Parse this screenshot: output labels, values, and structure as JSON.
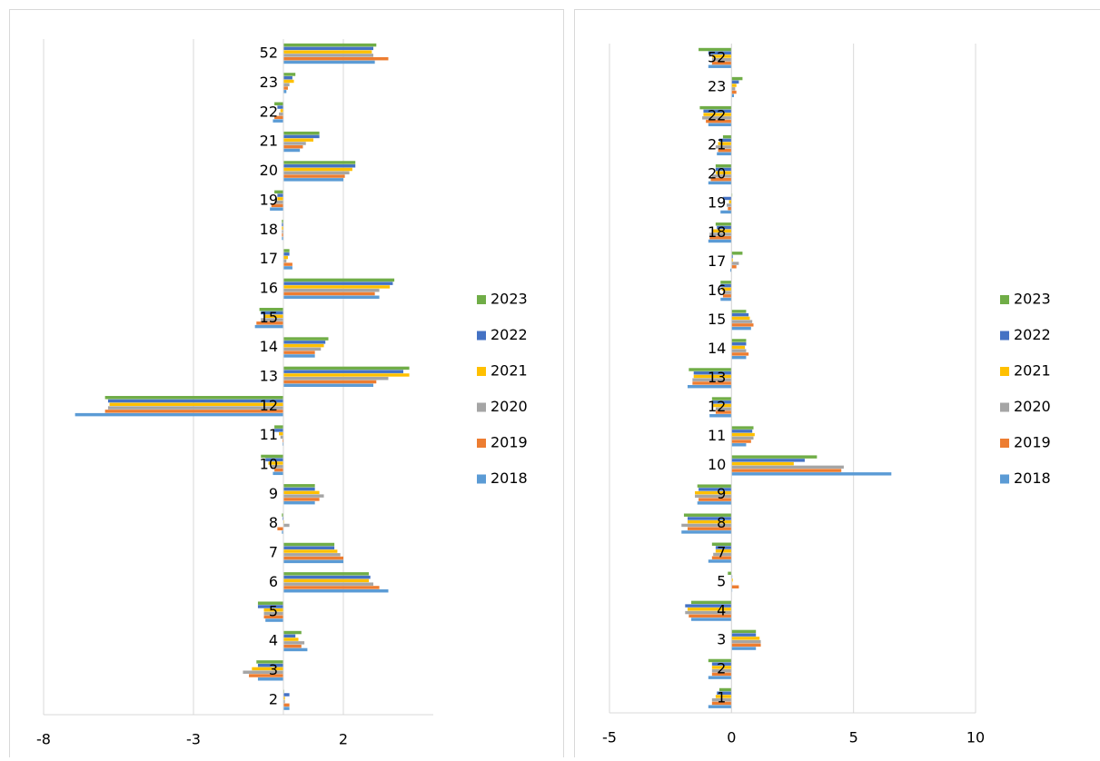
{
  "chart_data": [
    {
      "type": "bar",
      "orientation": "horizontal",
      "grid": true,
      "legend": "right",
      "categories": [
        "2",
        "3",
        "4",
        "5",
        "6",
        "7",
        "8",
        "9",
        "10",
        "11",
        "12",
        "13",
        "14",
        "15",
        "16",
        "17",
        "18",
        "19",
        "20",
        "21",
        "22",
        "23",
        "52"
      ],
      "xlim": [
        -8,
        5
      ],
      "xticks": [
        -8,
        -3,
        2
      ],
      "series": [
        {
          "name": "2023",
          "color": "#70ad47",
          "values": [
            0,
            -0.9,
            0.6,
            -0.85,
            2.85,
            1.7,
            -0.05,
            1.05,
            -0.75,
            -0.3,
            -5.95,
            4.2,
            1.5,
            -0.8,
            3.7,
            0.2,
            -0.05,
            -0.3,
            2.4,
            1.2,
            -0.3,
            0.4,
            3.1
          ]
        },
        {
          "name": "2022",
          "color": "#4472c4",
          "values": [
            0.2,
            -0.85,
            0.4,
            -0.85,
            2.9,
            1.7,
            -0.03,
            1.05,
            -0.6,
            -0.3,
            -5.85,
            4.0,
            1.4,
            -0.75,
            3.65,
            0.2,
            -0.05,
            -0.2,
            2.4,
            1.2,
            -0.2,
            0.3,
            3.0
          ]
        },
        {
          "name": "2021",
          "color": "#ffc000",
          "values": [
            0.05,
            -1.05,
            0.5,
            -0.65,
            2.85,
            1.8,
            0,
            1.2,
            -0.5,
            -0.15,
            -5.8,
            4.2,
            1.35,
            -0.65,
            3.55,
            0.15,
            -0.05,
            -0.2,
            2.3,
            1.0,
            -0.1,
            0.35,
            2.95
          ]
        },
        {
          "name": "2020",
          "color": "#a5a5a5",
          "values": [
            0.05,
            -1.35,
            0.7,
            -0.65,
            3.0,
            1.9,
            0.2,
            1.35,
            -0.4,
            -0.1,
            -5.85,
            3.5,
            1.25,
            -0.75,
            3.2,
            0.1,
            -0.05,
            -0.3,
            2.2,
            0.75,
            -0.15,
            0.2,
            3.0
          ]
        },
        {
          "name": "2019",
          "color": "#ed7d31",
          "values": [
            0.2,
            -1.15,
            0.6,
            -0.65,
            3.2,
            2.0,
            -0.2,
            1.2,
            -0.3,
            -0.03,
            -5.95,
            3.1,
            1.05,
            -0.9,
            3.05,
            0.3,
            -0.05,
            -0.4,
            2.05,
            0.65,
            -0.3,
            0.15,
            3.5
          ]
        },
        {
          "name": "2018",
          "color": "#5b9bd5",
          "values": [
            0.2,
            -0.85,
            0.8,
            -0.6,
            3.5,
            2.0,
            -0.05,
            1.05,
            -0.35,
            -0.03,
            -6.95,
            3.0,
            1.05,
            -0.95,
            3.2,
            0.3,
            -0.05,
            -0.45,
            2.0,
            0.55,
            -0.35,
            0.1,
            3.05
          ]
        }
      ]
    },
    {
      "type": "bar",
      "orientation": "horizontal",
      "grid": true,
      "legend": "right",
      "categories": [
        "1",
        "2",
        "3",
        "4",
        "5",
        "7",
        "8",
        "9",
        "10",
        "11",
        "12",
        "13",
        "14",
        "15",
        "16",
        "17",
        "18",
        "19",
        "20",
        "21",
        "22",
        "23",
        "52"
      ],
      "xlim": [
        -5,
        10
      ],
      "xticks": [
        -5,
        0,
        5,
        10
      ],
      "series": [
        {
          "name": "2023",
          "color": "#70ad47",
          "values": [
            -0.5,
            -0.95,
            1.0,
            -1.65,
            -0.15,
            -0.8,
            -1.95,
            -1.4,
            3.5,
            0.9,
            -0.8,
            -1.75,
            0.6,
            0.6,
            -0.45,
            0.45,
            -0.65,
            0,
            -0.65,
            -0.35,
            -1.3,
            0.45,
            -1.35
          ]
        },
        {
          "name": "2022",
          "color": "#4472c4",
          "values": [
            -0.6,
            -0.8,
            1.0,
            -1.9,
            0,
            -0.65,
            -1.8,
            -1.35,
            3.0,
            0.85,
            -0.8,
            -1.55,
            0.6,
            0.7,
            -0.45,
            0.05,
            -0.6,
            -0.35,
            -0.65,
            -0.5,
            -1.15,
            0.3,
            -0.95
          ]
        },
        {
          "name": "2021",
          "color": "#ffc000",
          "values": [
            -0.65,
            -0.8,
            1.15,
            -1.8,
            0.05,
            -0.65,
            -1.8,
            -1.5,
            2.55,
            0.95,
            -0.75,
            -1.55,
            0.55,
            0.75,
            -0.4,
            0.05,
            -0.8,
            -0.1,
            -0.65,
            -0.55,
            -1.15,
            0.2,
            -0.8
          ]
        },
        {
          "name": "2020",
          "color": "#a5a5a5",
          "values": [
            -0.8,
            -0.8,
            1.2,
            -1.9,
            0,
            -0.75,
            -2.05,
            -1.5,
            4.6,
            0.9,
            -0.65,
            -1.6,
            0.6,
            0.85,
            -0.35,
            0.3,
            -0.9,
            -0.2,
            -0.8,
            -0.65,
            -1.2,
            0.15,
            -0.8
          ]
        },
        {
          "name": "2019",
          "color": "#ed7d31",
          "values": [
            -0.8,
            -0.8,
            1.2,
            -1.75,
            0.3,
            -0.8,
            -1.8,
            -1.35,
            4.5,
            0.8,
            -0.65,
            -1.6,
            0.7,
            0.9,
            -0.35,
            0.2,
            -0.9,
            -0.15,
            -0.85,
            -0.55,
            -1.05,
            0.2,
            -0.8
          ]
        },
        {
          "name": "2018",
          "color": "#5b9bd5",
          "values": [
            -0.95,
            -0.95,
            1.0,
            -1.65,
            0,
            -0.95,
            -2.05,
            -1.4,
            6.55,
            0.6,
            -0.9,
            -1.8,
            0.6,
            0.8,
            -0.45,
            -0.05,
            -0.95,
            -0.45,
            -0.95,
            -0.6,
            -0.95,
            0.1,
            -0.95
          ]
        }
      ]
    }
  ]
}
